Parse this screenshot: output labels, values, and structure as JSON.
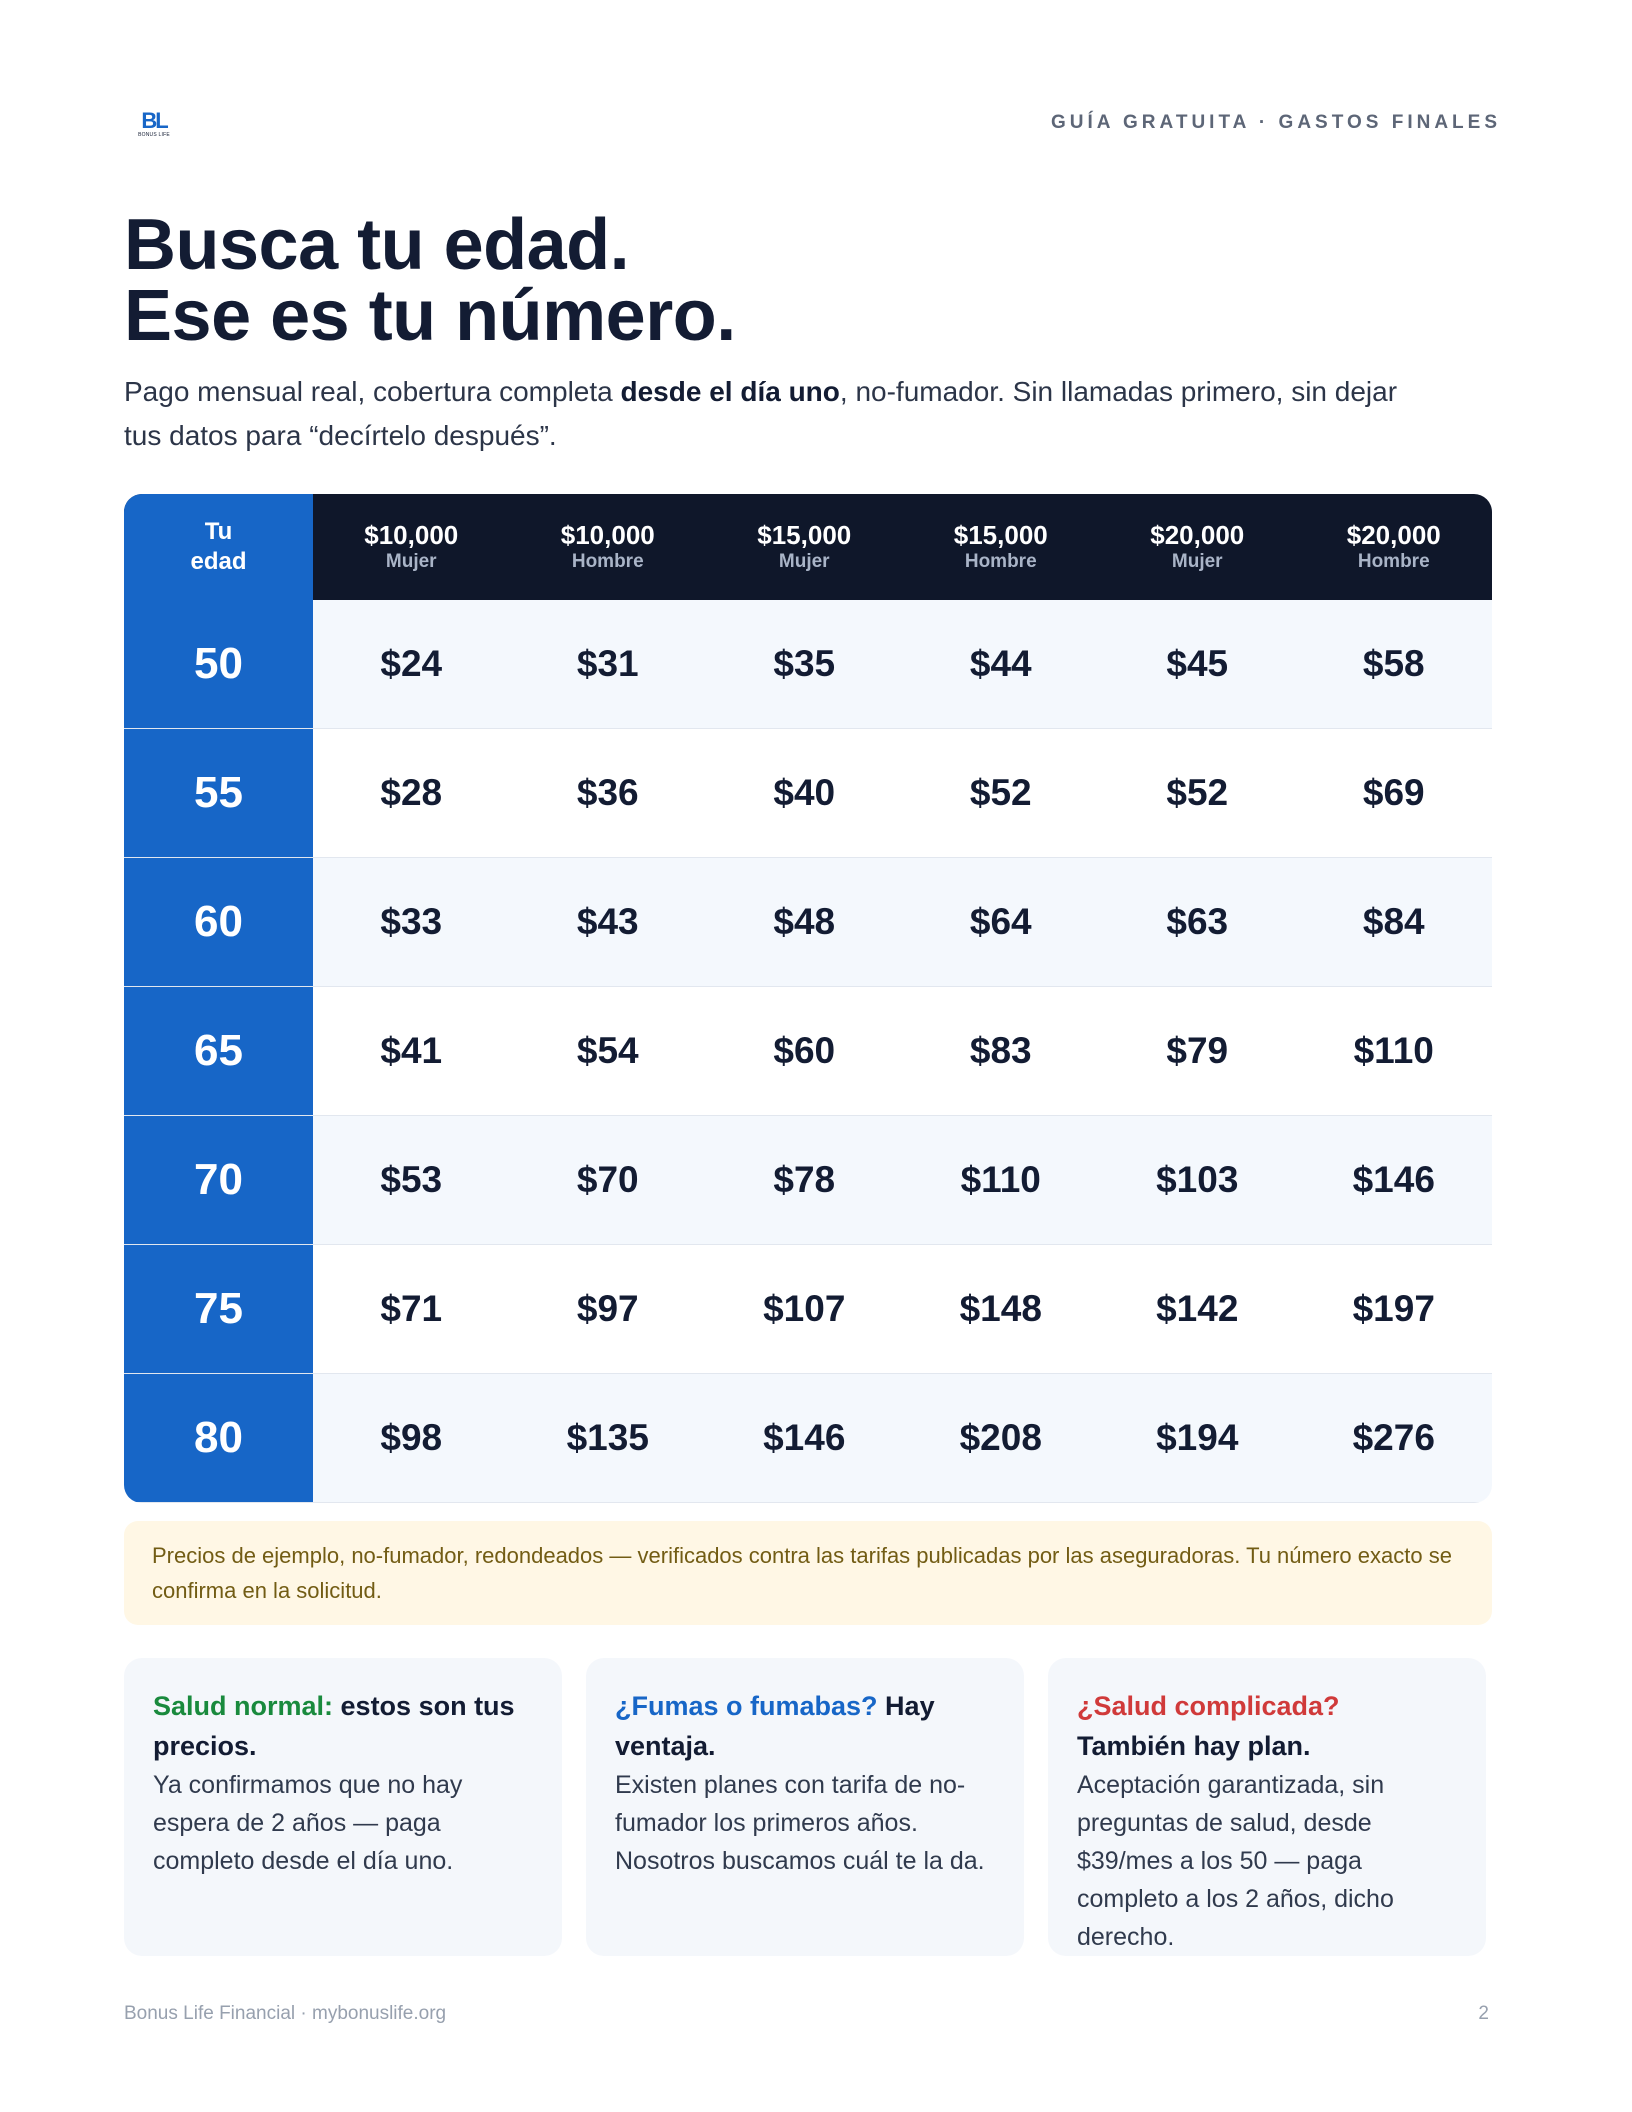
{
  "header": {
    "logo_mark": "BL",
    "logo_sub": "BONUS LIFE",
    "kicker": "GUÍA GRATUITA · GASTOS FINALES"
  },
  "headline": {
    "line1": "Busca tu edad.",
    "line2": "Ese es tu número."
  },
  "lede": {
    "before": "Pago mensual real, cobertura completa ",
    "bold": "desde el día uno",
    "after": ", no-fumador. Sin llamadas primero, sin dejar tus datos para “decírtelo después”."
  },
  "table": {
    "age_header": [
      "Tu",
      "edad"
    ],
    "columns": [
      {
        "amount": "$10,000",
        "sex": "Mujer"
      },
      {
        "amount": "$10,000",
        "sex": "Hombre"
      },
      {
        "amount": "$15,000",
        "sex": "Mujer"
      },
      {
        "amount": "$15,000",
        "sex": "Hombre"
      },
      {
        "amount": "$20,000",
        "sex": "Mujer"
      },
      {
        "amount": "$20,000",
        "sex": "Hombre"
      }
    ],
    "rows": [
      {
        "age": "50",
        "prices": [
          "$24",
          "$31",
          "$35",
          "$44",
          "$45",
          "$58"
        ]
      },
      {
        "age": "55",
        "prices": [
          "$28",
          "$36",
          "$40",
          "$52",
          "$52",
          "$69"
        ]
      },
      {
        "age": "60",
        "prices": [
          "$33",
          "$43",
          "$48",
          "$64",
          "$63",
          "$84"
        ]
      },
      {
        "age": "65",
        "prices": [
          "$41",
          "$54",
          "$60",
          "$83",
          "$79",
          "$110"
        ]
      },
      {
        "age": "70",
        "prices": [
          "$53",
          "$70",
          "$78",
          "$110",
          "$103",
          "$146"
        ]
      },
      {
        "age": "75",
        "prices": [
          "$71",
          "$97",
          "$107",
          "$148",
          "$142",
          "$197"
        ]
      },
      {
        "age": "80",
        "prices": [
          "$98",
          "$135",
          "$146",
          "$208",
          "$194",
          "$276"
        ]
      }
    ]
  },
  "note": "Precios de ejemplo, no-fumador, redondeados — verificados contra las tarifas publicadas por las aseguradoras. Tu número exacto se confirma en la solicitud.",
  "cards": [
    {
      "highlight": "Salud normal:",
      "title_rest": " estos son tus precios.",
      "body": "Ya confirmamos que no hay espera de 2 años — paga completo desde el día uno."
    },
    {
      "highlight": "¿Fumas o fumabas?",
      "title_rest": " Hay ventaja.",
      "body": "Existen planes con tarifa de no-fumador los primeros años. Nosotros buscamos cuál te la da."
    },
    {
      "highlight": "¿Salud complicada?",
      "title_rest": " También hay plan.",
      "body": "Aceptación garantizada, sin preguntas de salud, desde $39/mes a los 50 — paga completo a los 2 años, dicho derecho."
    }
  ],
  "footer": {
    "left": "Bonus Life Financial · mybonuslife.org",
    "page": "2"
  },
  "colors": {
    "brand_blue": "#1766c7",
    "navy": "#0f172a",
    "green": "#198a3d",
    "red": "#d03a3a",
    "note_bg": "#fff7e5"
  }
}
